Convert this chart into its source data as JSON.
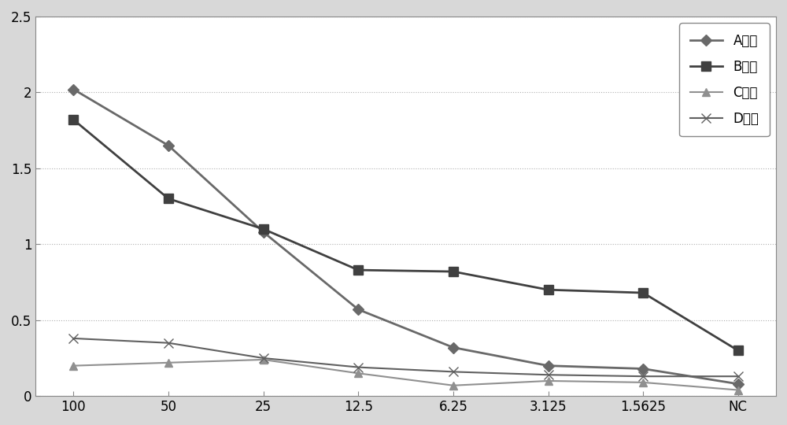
{
  "x_labels": [
    "100",
    "50",
    "25",
    "12.5",
    "6.25",
    "3.125",
    "1.5625",
    "NC"
  ],
  "series": [
    {
      "name": "A组分",
      "values": [
        2.02,
        1.65,
        1.08,
        0.57,
        0.32,
        0.2,
        0.18,
        0.08
      ],
      "color": "#696969",
      "marker": "D",
      "markersize": 7,
      "linewidth": 2.0
    },
    {
      "name": "B组分",
      "values": [
        1.82,
        1.3,
        1.1,
        0.83,
        0.82,
        0.7,
        0.68,
        0.3
      ],
      "color": "#404040",
      "marker": "s",
      "markersize": 8,
      "linewidth": 2.0
    },
    {
      "name": "C组分",
      "values": [
        0.2,
        0.22,
        0.24,
        0.15,
        0.07,
        0.1,
        0.09,
        0.04
      ],
      "color": "#909090",
      "marker": "^",
      "markersize": 7,
      "linewidth": 1.5
    },
    {
      "name": "D组分",
      "values": [
        0.38,
        0.35,
        0.25,
        0.19,
        0.16,
        0.14,
        0.13,
        0.13
      ],
      "color": "#606060",
      "marker": "x",
      "markersize": 9,
      "linewidth": 1.5
    }
  ],
  "ylim": [
    0,
    2.5
  ],
  "yticks": [
    0,
    0.5,
    1.0,
    1.5,
    2.0,
    2.5
  ],
  "grid_color": "#b0b0b0",
  "background_color": "#ffffff",
  "outer_background": "#d8d8d8",
  "legend_fontsize": 12,
  "tick_fontsize": 12,
  "border_color": "#888888"
}
